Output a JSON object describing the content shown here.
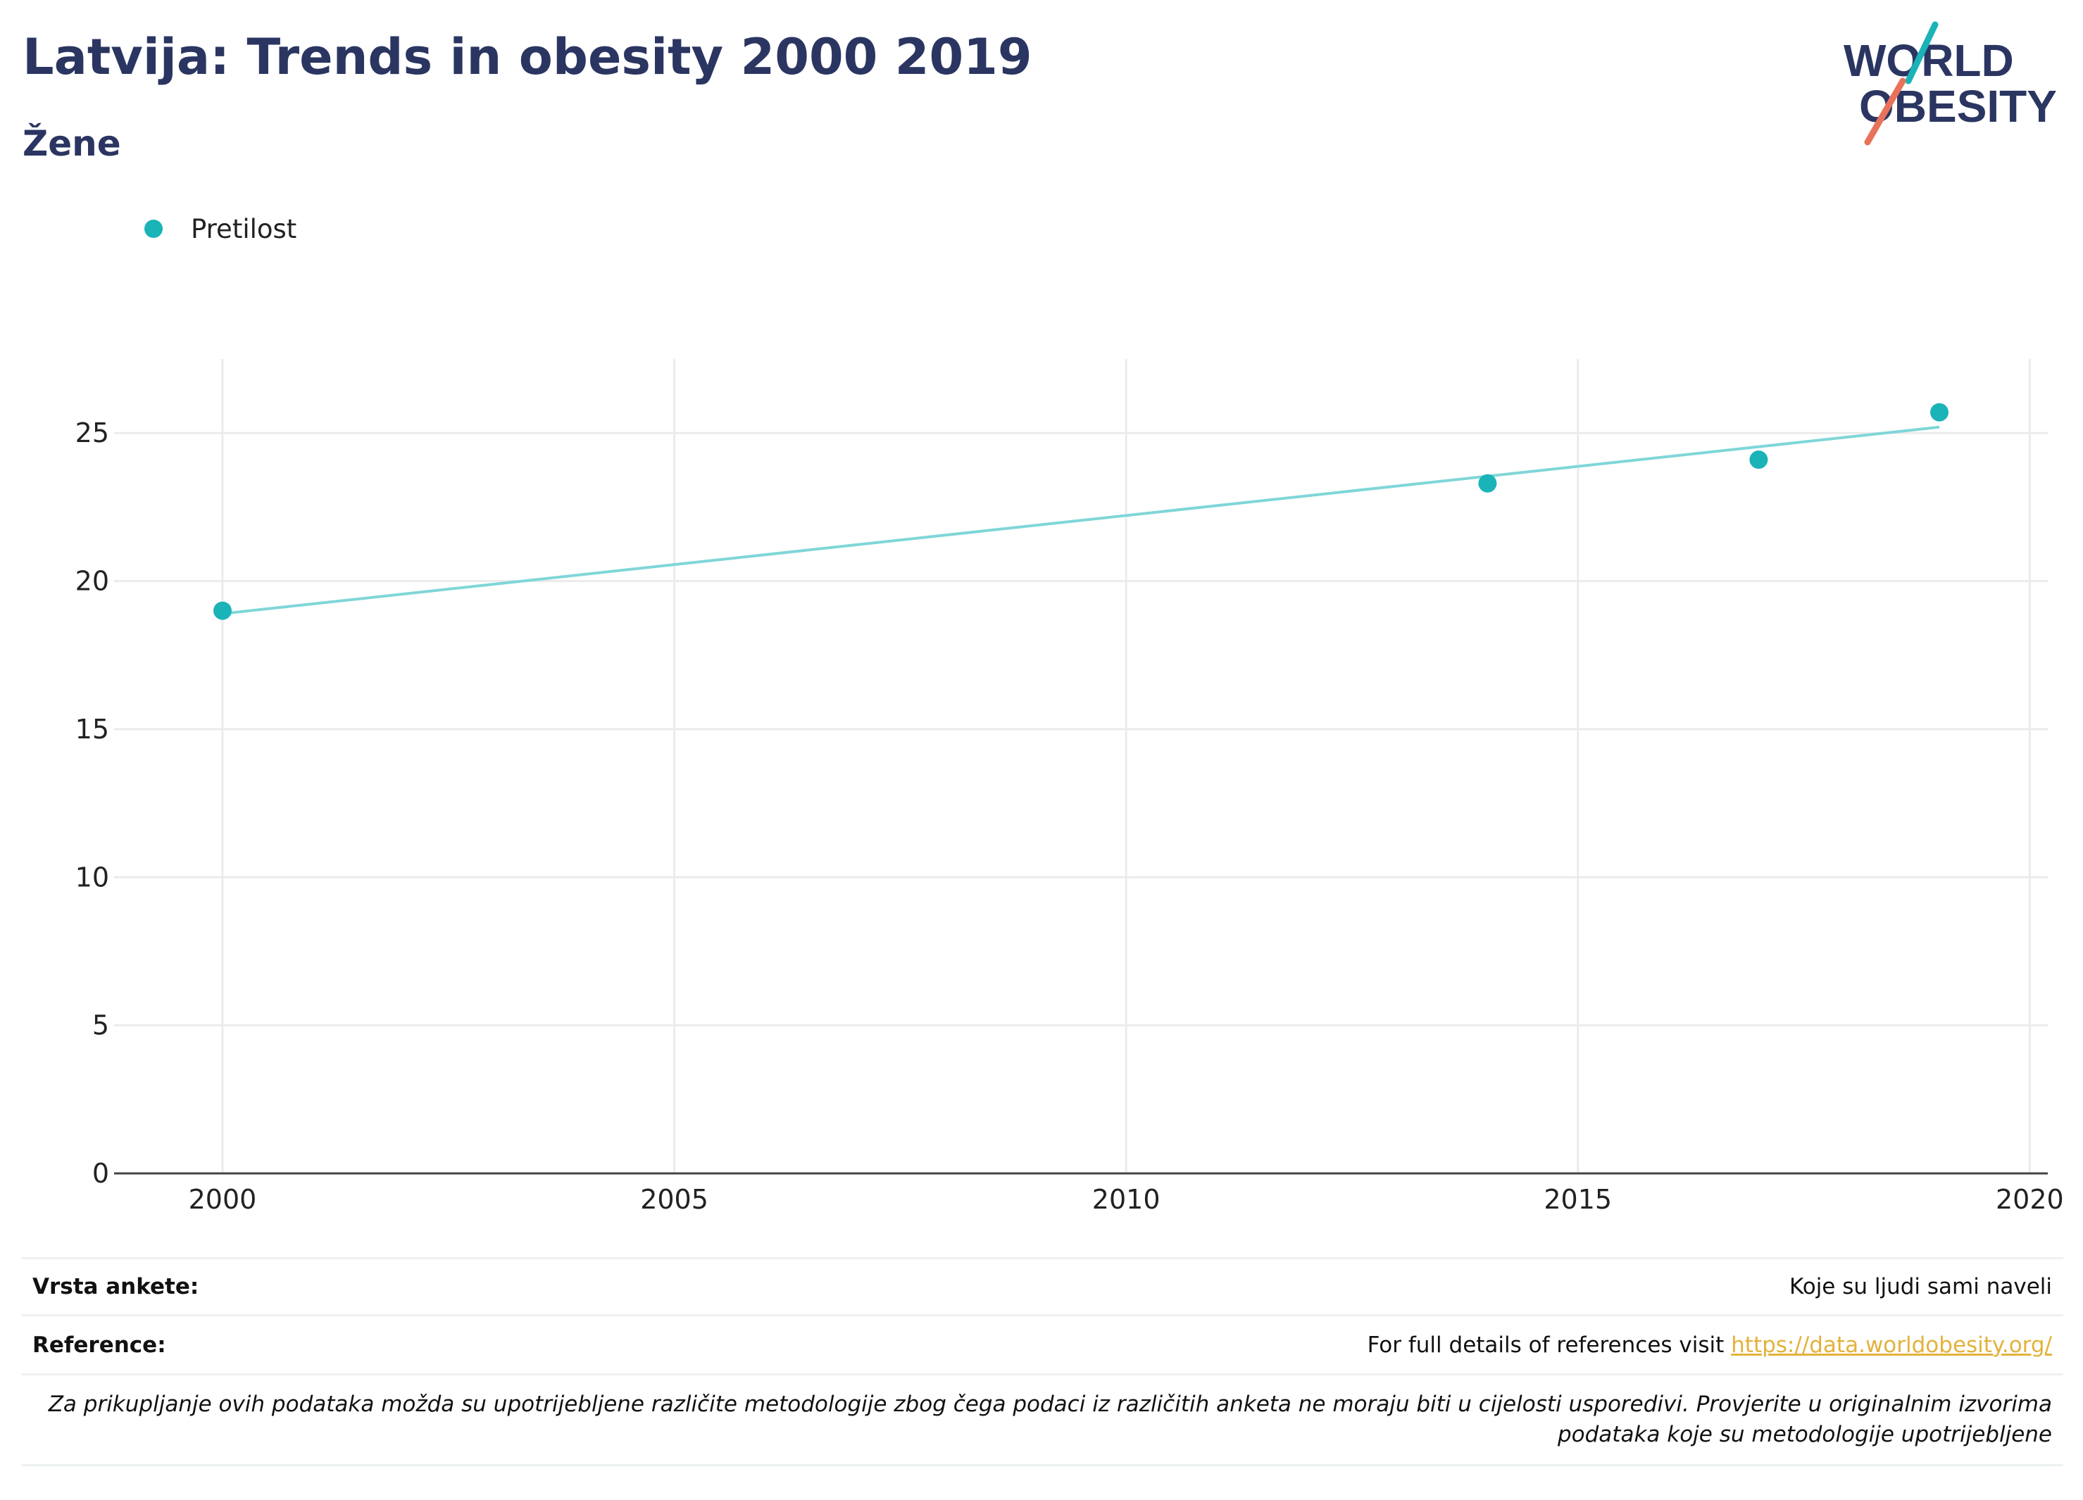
{
  "header": {
    "title": "Latvija: Trends in obesity 2000 2019",
    "subtitle": "Žene"
  },
  "logo": {
    "line1": "WORLD",
    "line2": "OBESITY",
    "colors": {
      "text": "#2b3561",
      "teal": "#1ab3b8",
      "coral": "#e8735a"
    }
  },
  "legend": {
    "label": "Pretilost",
    "color": "#1ab3b8"
  },
  "chart_data": {
    "type": "scatter",
    "series": [
      {
        "name": "Pretilost",
        "color": "#1ab3b8",
        "x": [
          2000,
          2014,
          2017,
          2019
        ],
        "y": [
          19.0,
          23.3,
          24.1,
          25.7
        ]
      }
    ],
    "trendline": {
      "x": [
        2000,
        2019
      ],
      "y": [
        18.9,
        25.2
      ],
      "color": "#7fd6d8"
    },
    "xlim": [
      1998.8,
      2020.2
    ],
    "ylim": [
      0,
      27.5
    ],
    "xticks": [
      2000,
      2005,
      2010,
      2015,
      2020
    ],
    "yticks": [
      0,
      5,
      10,
      15,
      20,
      25
    ],
    "grid": true,
    "legend_position": "top-left"
  },
  "footer": {
    "survey_type_label": "Vrsta ankete:",
    "survey_type_value": "Koje su ljudi sami naveli",
    "reference_label": "Reference:",
    "reference_text": "For full details of references visit ",
    "reference_link": "https://data.worldobesity.org/",
    "note_line1": "Za prikupljanje ovih podataka možda su upotrijebljene različite metodologije zbog čega podaci iz različitih anketa ne moraju biti u cijelosti usporedivi. Provjerite u originalnim izvorima",
    "note_line2": "podataka koje su metodologije upotrijebljene"
  }
}
